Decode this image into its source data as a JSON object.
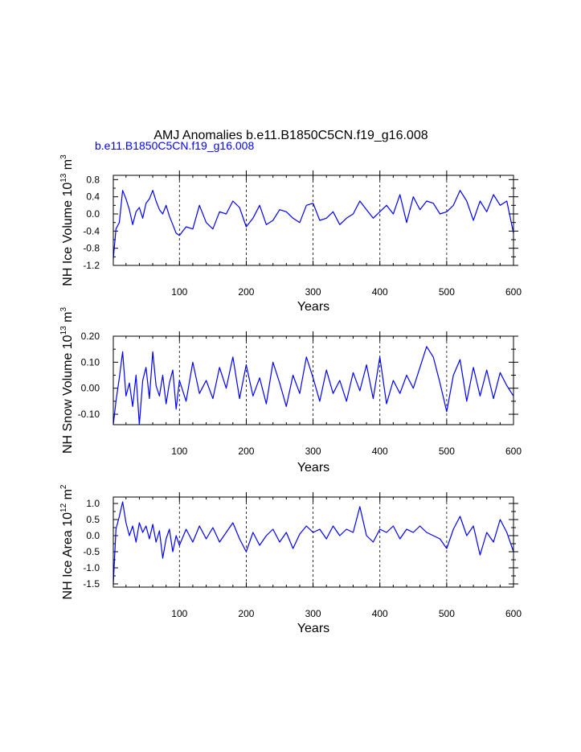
{
  "title": "AMJ Anomalies b.e11.B1850C5CN.f19_g16.008",
  "subtitle": "b.e11.B1850C5CN.f19_g16.008",
  "colors": {
    "series": "#0000ff",
    "axis": "#000000",
    "grid": "#000000",
    "subtitle": "#0000ff"
  },
  "chart_data": [
    {
      "type": "line",
      "xlabel": "Years",
      "ylabel": {
        "prefix": "NH Ice Volume 10",
        "exp": "13",
        "unit": " m",
        "unit_exp": "3"
      },
      "xlim": [
        1,
        600
      ],
      "ylim": [
        -1.2,
        0.9
      ],
      "xticks": [
        100,
        200,
        300,
        400,
        500,
        600
      ],
      "yticks": [
        -1.2,
        -0.8,
        -0.4,
        0.0,
        0.4,
        0.8
      ],
      "ytick_labels": [
        "-1.2",
        "-0.8",
        "-0.4",
        "0.0",
        "0.4",
        "0.8"
      ],
      "grid": "vertical dashed at x ticks",
      "series": [
        {
          "x": [
            1,
            5,
            10,
            15,
            20,
            25,
            30,
            35,
            40,
            45,
            50,
            55,
            60,
            65,
            70,
            75,
            80,
            85,
            90,
            95,
            100,
            110,
            120,
            130,
            140,
            150,
            160,
            170,
            180,
            190,
            200,
            210,
            220,
            230,
            240,
            250,
            260,
            270,
            280,
            290,
            300,
            310,
            320,
            330,
            340,
            350,
            360,
            370,
            380,
            390,
            400,
            410,
            420,
            430,
            440,
            450,
            460,
            470,
            480,
            490,
            500,
            510,
            520,
            530,
            540,
            550,
            560,
            570,
            580,
            590,
            600
          ],
          "values": [
            -1.05,
            -0.35,
            -0.2,
            0.55,
            0.35,
            0.1,
            -0.25,
            0.05,
            0.15,
            -0.1,
            0.25,
            0.35,
            0.55,
            0.3,
            0.1,
            0.0,
            0.2,
            -0.05,
            -0.25,
            -0.45,
            -0.5,
            -0.3,
            -0.35,
            0.2,
            -0.2,
            -0.35,
            0.05,
            0.0,
            0.3,
            0.15,
            -0.3,
            -0.1,
            0.2,
            -0.25,
            -0.15,
            0.1,
            0.05,
            -0.1,
            -0.2,
            0.2,
            0.25,
            -0.15,
            -0.1,
            0.05,
            -0.25,
            -0.1,
            0.0,
            0.3,
            0.1,
            -0.1,
            0.05,
            0.2,
            0.0,
            0.45,
            -0.2,
            0.4,
            0.1,
            0.3,
            0.25,
            0.0,
            0.05,
            0.2,
            0.55,
            0.3,
            -0.15,
            0.3,
            0.05,
            0.45,
            0.2,
            0.3,
            -0.45
          ]
        }
      ]
    },
    {
      "type": "line",
      "xlabel": "Years",
      "ylabel": {
        "prefix": "NH Snow Volume 10",
        "exp": "13",
        "unit": " m",
        "unit_exp": "3"
      },
      "xlim": [
        1,
        600
      ],
      "ylim": [
        -0.14,
        0.2
      ],
      "xticks": [
        100,
        200,
        300,
        400,
        500,
        600
      ],
      "yticks": [
        -0.1,
        0.0,
        0.1,
        0.2
      ],
      "ytick_labels": [
        "-0.10",
        "0.00",
        "0.10",
        "0.20"
      ],
      "grid": "vertical dashed at x ticks",
      "series": [
        {
          "x": [
            1,
            5,
            10,
            15,
            20,
            25,
            30,
            35,
            40,
            45,
            50,
            55,
            60,
            65,
            70,
            75,
            80,
            85,
            90,
            95,
            100,
            110,
            120,
            130,
            140,
            150,
            160,
            170,
            180,
            190,
            200,
            210,
            220,
            230,
            240,
            250,
            260,
            270,
            280,
            290,
            300,
            310,
            320,
            330,
            340,
            350,
            360,
            370,
            380,
            390,
            400,
            410,
            420,
            430,
            440,
            450,
            460,
            470,
            480,
            490,
            500,
            510,
            520,
            530,
            540,
            550,
            560,
            570,
            580,
            590,
            600
          ],
          "values": [
            -0.14,
            -0.05,
            0.04,
            0.14,
            -0.03,
            0.02,
            -0.07,
            0.05,
            -0.14,
            0.03,
            0.08,
            -0.04,
            0.14,
            0.01,
            -0.03,
            0.05,
            -0.06,
            0.02,
            0.07,
            -0.08,
            0.03,
            -0.05,
            0.1,
            -0.02,
            0.03,
            -0.04,
            0.08,
            0.0,
            0.12,
            -0.04,
            0.09,
            -0.03,
            0.04,
            -0.06,
            0.1,
            0.02,
            -0.07,
            0.05,
            -0.02,
            0.12,
            0.04,
            -0.05,
            0.07,
            -0.02,
            0.03,
            -0.05,
            0.06,
            -0.01,
            0.09,
            -0.04,
            0.12,
            -0.06,
            0.03,
            -0.02,
            0.05,
            0.0,
            0.08,
            0.16,
            0.12,
            0.02,
            -0.09,
            0.05,
            0.11,
            -0.05,
            0.08,
            -0.03,
            0.07,
            -0.04,
            0.06,
            0.01,
            -0.03
          ]
        }
      ]
    },
    {
      "type": "line",
      "xlabel": "Years",
      "ylabel": {
        "prefix": "NH Ice Area 10",
        "exp": "12",
        "unit": " m",
        "unit_exp": "2"
      },
      "xlim": [
        1,
        600
      ],
      "ylim": [
        -1.6,
        1.2
      ],
      "xticks": [
        100,
        200,
        300,
        400,
        500,
        600
      ],
      "yticks": [
        -1.5,
        -1.0,
        -0.5,
        0.0,
        0.5,
        1.0
      ],
      "ytick_labels": [
        "-1.5",
        "-1.0",
        "-0.5",
        "0.0",
        "0.5",
        "1.0"
      ],
      "grid": "vertical dashed at x ticks",
      "series": [
        {
          "x": [
            1,
            5,
            10,
            15,
            20,
            25,
            30,
            35,
            40,
            45,
            50,
            55,
            60,
            65,
            70,
            75,
            80,
            85,
            90,
            95,
            100,
            110,
            120,
            130,
            140,
            150,
            160,
            170,
            180,
            190,
            200,
            210,
            220,
            230,
            240,
            250,
            260,
            270,
            280,
            290,
            300,
            310,
            320,
            330,
            340,
            350,
            360,
            370,
            380,
            390,
            400,
            410,
            420,
            430,
            440,
            450,
            460,
            470,
            480,
            490,
            500,
            510,
            520,
            530,
            540,
            550,
            560,
            570,
            580,
            590,
            600
          ],
          "values": [
            -1.5,
            0.2,
            0.6,
            1.05,
            0.4,
            0.0,
            0.3,
            -0.2,
            0.4,
            0.1,
            0.3,
            -0.1,
            0.35,
            -0.2,
            0.15,
            -0.7,
            -0.1,
            0.2,
            -0.5,
            0.0,
            -0.3,
            0.2,
            -0.2,
            0.3,
            -0.1,
            0.25,
            -0.2,
            0.1,
            0.4,
            -0.1,
            -0.5,
            0.1,
            -0.3,
            0.0,
            0.2,
            -0.2,
            0.1,
            -0.4,
            0.05,
            0.3,
            0.1,
            0.2,
            -0.1,
            0.3,
            0.0,
            0.2,
            0.1,
            0.9,
            0.0,
            -0.2,
            0.2,
            0.1,
            0.3,
            -0.1,
            0.2,
            0.1,
            0.3,
            0.1,
            0.0,
            -0.1,
            -0.4,
            0.2,
            0.6,
            0.0,
            0.3,
            -0.6,
            0.1,
            -0.2,
            0.5,
            0.1,
            -0.5
          ]
        }
      ]
    }
  ]
}
